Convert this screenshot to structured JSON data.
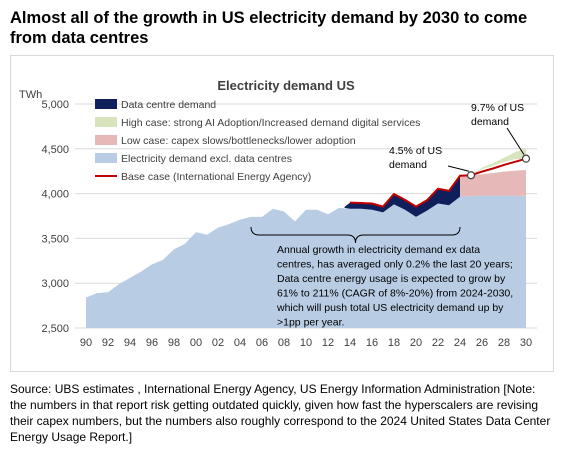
{
  "headline": {
    "line1": "Almost all of the growth in US electricity demand by 2030 to come",
    "line2": "from data centres"
  },
  "source": {
    "line1": "Source: UBS estimates , International Energy Agency, US Energy Information Administration [Note:",
    "line2": "the numbers in that report risk getting outdated quickly, given how fast the hyperscalers are revising",
    "line3": "their capex numbers, but the numbers also roughly correspond to the 2024 United States Data Center",
    "line4": "Energy Usage Report.]"
  },
  "colors": {
    "excl_dc": "#b8cce4",
    "data_centre": "#0f1f5c",
    "high_case": "#d8e4bc",
    "low_case": "#e6b8b7",
    "base_case": "#c00000",
    "gridline": "#d9d9d9",
    "axis_text": "#404040"
  },
  "chart_data": {
    "type": "area",
    "title": "Electricity demand US",
    "yunit": "TWh",
    "ylim": [
      2500,
      5000
    ],
    "yticks": [
      2500,
      3000,
      3500,
      4000,
      4500,
      5000
    ],
    "ytick_labels": [
      "2,500",
      "3,000",
      "3,500",
      "4,000",
      "4,500",
      "5,000"
    ],
    "xlim": [
      1989,
      2031
    ],
    "xticks": [
      1990,
      1992,
      1994,
      1996,
      1998,
      2000,
      2002,
      2004,
      2006,
      2008,
      2010,
      2012,
      2014,
      2016,
      2018,
      2020,
      2022,
      2024,
      2026,
      2028,
      2030
    ],
    "xtick_labels": [
      "90",
      "92",
      "94",
      "96",
      "98",
      "00",
      "02",
      "04",
      "06",
      "08",
      "10",
      "12",
      "14",
      "16",
      "18",
      "20",
      "22",
      "24",
      "26",
      "28",
      "30"
    ],
    "grid": true,
    "legend_position": "top",
    "series": [
      {
        "name": "Data centre demand",
        "type": "area-band",
        "x": [
          2013.5,
          2014,
          2015,
          2016,
          2017,
          2018,
          2019,
          2020,
          2021,
          2022,
          2023,
          2024
        ],
        "lower": [
          3840,
          3830,
          3830,
          3820,
          3790,
          3880,
          3820,
          3740,
          3810,
          3890,
          3870,
          3965
        ],
        "upper": [
          3850,
          3900,
          3895,
          3890,
          3855,
          3995,
          3930,
          3855,
          3925,
          4055,
          4030,
          4200
        ]
      },
      {
        "name": "High case: strong AI Adoption/Increased demand digital services",
        "type": "area-band",
        "x": [
          2025,
          2026,
          2027,
          2028,
          2029,
          2030
        ],
        "lower": [
          4205,
          4270,
          4310,
          4350,
          4385,
          4390
        ],
        "upper": [
          4205,
          4290,
          4340,
          4400,
          4460,
          4510
        ]
      },
      {
        "name": "Low case: capex slows/bottlenecks/lower adoption",
        "type": "area-band",
        "x": [
          2024,
          2025,
          2026,
          2027,
          2028,
          2029,
          2030
        ],
        "lower": [
          3965,
          3975,
          3975,
          3975,
          3975,
          3975,
          3975
        ],
        "upper": [
          4200,
          4205,
          4215,
          4230,
          4245,
          4255,
          4265
        ]
      },
      {
        "name": "Electricity demand excl. data centres",
        "type": "area",
        "x": [
          1990,
          1991,
          1992,
          1993,
          1994,
          1995,
          1996,
          1997,
          1998,
          1999,
          2000,
          2001,
          2002,
          2003,
          2004,
          2005,
          2006,
          2007,
          2008,
          2009,
          2010,
          2011,
          2012,
          2013,
          2014,
          2015,
          2016,
          2017,
          2018,
          2019,
          2020,
          2021,
          2022,
          2023,
          2024,
          2025,
          2026,
          2027,
          2028,
          2029,
          2030
        ],
        "values": [
          2840,
          2890,
          2900,
          2990,
          3060,
          3130,
          3210,
          3260,
          3380,
          3440,
          3570,
          3540,
          3620,
          3660,
          3710,
          3740,
          3740,
          3830,
          3800,
          3690,
          3820,
          3820,
          3770,
          3840,
          3830,
          3830,
          3820,
          3790,
          3880,
          3820,
          3740,
          3810,
          3890,
          3870,
          3965,
          3975,
          3975,
          3975,
          3975,
          3975,
          3975
        ]
      },
      {
        "name": "Base case (International Energy Agency)",
        "type": "line",
        "x": [
          2014,
          2015,
          2016,
          2017,
          2018,
          2019,
          2020,
          2021,
          2022,
          2023,
          2024,
          2025,
          2026,
          2027,
          2028,
          2029,
          2030
        ],
        "values": [
          3900,
          3895,
          3890,
          3855,
          3995,
          3930,
          3855,
          3925,
          4055,
          4030,
          4200,
          4205,
          4245,
          4280,
          4320,
          4355,
          4390
        ]
      }
    ],
    "markers": [
      {
        "x": 2025,
        "y": 4205
      },
      {
        "x": 2030,
        "y": 4390
      }
    ],
    "annotations": {
      "a45_line1": "4.5% of US",
      "a45_line2": "demand",
      "a97_line1": "9.7% of US",
      "a97_line2": "demand",
      "growth_lines": [
        "Annual growth in electricity demand ex data",
        "centres, has averaged only 0.2% the last 20 years;",
        "Data centre energy usage is expected to grow by",
        "61% to 211% (CAGR of 8%-20%) from 2024-2030,",
        "which will push total US electricity demand up by",
        ">1pp per year."
      ]
    }
  }
}
